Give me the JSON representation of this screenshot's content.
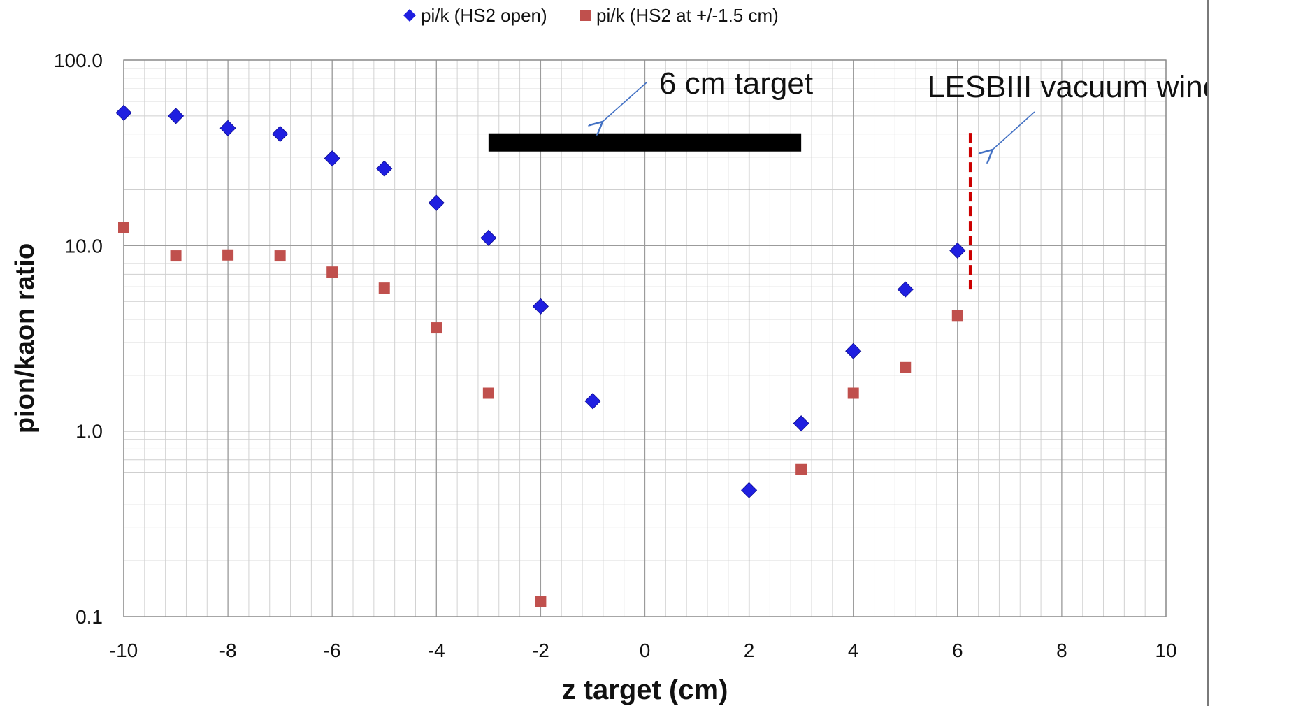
{
  "chart_data": {
    "type": "scatter",
    "title": "",
    "xlabel": "z target (cm)",
    "ylabel": "pion/kaon ratio",
    "x_range": [
      -10,
      10
    ],
    "y_range": [
      0.1,
      100
    ],
    "y_scale": "log",
    "x_ticks": [
      -10,
      -8,
      -6,
      -4,
      -2,
      0,
      2,
      4,
      6,
      8,
      10
    ],
    "y_tick_labels": [
      "0.1",
      "1.0",
      "10.0",
      "100.0"
    ],
    "grid": true,
    "legend_position": "top-center",
    "series": [
      {
        "name": "pi/k (HS2 open)",
        "marker": "diamond",
        "color": "#1f1fe0",
        "points": [
          [
            -10,
            52
          ],
          [
            -9,
            50
          ],
          [
            -8,
            43
          ],
          [
            -7,
            40
          ],
          [
            -6,
            29.5
          ],
          [
            -5,
            26
          ],
          [
            -4,
            17
          ],
          [
            -3,
            11
          ],
          [
            -2,
            4.7
          ],
          [
            -1,
            1.45
          ],
          [
            2,
            0.48
          ],
          [
            3,
            1.1
          ],
          [
            4,
            2.7
          ],
          [
            5,
            5.8
          ],
          [
            6,
            9.4
          ]
        ]
      },
      {
        "name": "pi/k (HS2 at +/-1.5 cm)",
        "marker": "square",
        "color": "#c0504d",
        "points": [
          [
            -10,
            12.5
          ],
          [
            -9,
            8.8
          ],
          [
            -8,
            8.9
          ],
          [
            -7,
            8.8
          ],
          [
            -6,
            7.2
          ],
          [
            -5,
            5.9
          ],
          [
            -4,
            3.6
          ],
          [
            -3,
            1.6
          ],
          [
            -2,
            0.12
          ],
          [
            3,
            0.62
          ],
          [
            4,
            1.6
          ],
          [
            5,
            2.2
          ],
          [
            6,
            4.2
          ]
        ]
      }
    ],
    "annotations": [
      {
        "label": "6 cm target",
        "kind": "bar",
        "x_start": -3,
        "x_end": 3,
        "y": 36,
        "color": "#000000"
      },
      {
        "label": "LESBIII vacuum window",
        "kind": "dashed-line",
        "x": 6.25,
        "y_start": 5.8,
        "y_end": 42,
        "color": "#cc0000"
      }
    ]
  }
}
